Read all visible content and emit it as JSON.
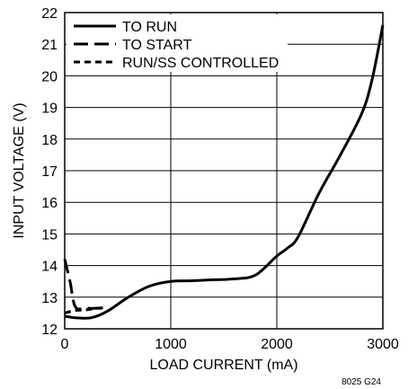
{
  "chart_data": {
    "type": "line",
    "xlabel": "LOAD CURRENT (mA)",
    "ylabel": "INPUT VOLTAGE (V)",
    "xlim": [
      0,
      3000
    ],
    "ylim": [
      12,
      22
    ],
    "x_ticks": [
      0,
      1000,
      2000,
      3000
    ],
    "y_ticks": [
      12,
      13,
      14,
      15,
      16,
      17,
      18,
      19,
      20,
      21,
      22
    ],
    "grid": true,
    "legend_position": "top-left",
    "note": "8025 G24",
    "series": [
      {
        "name": "TO RUN",
        "style": "solid",
        "points": [
          [
            0,
            12.4
          ],
          [
            100,
            12.35
          ],
          [
            250,
            12.35
          ],
          [
            400,
            12.55
          ],
          [
            600,
            13.0
          ],
          [
            800,
            13.35
          ],
          [
            1000,
            13.5
          ],
          [
            1200,
            13.52
          ],
          [
            1400,
            13.55
          ],
          [
            1600,
            13.58
          ],
          [
            1800,
            13.7
          ],
          [
            2000,
            14.3
          ],
          [
            2100,
            14.55
          ],
          [
            2200,
            14.9
          ],
          [
            2400,
            16.3
          ],
          [
            2600,
            17.5
          ],
          [
            2800,
            18.8
          ],
          [
            2900,
            19.9
          ],
          [
            3000,
            21.6
          ]
        ]
      },
      {
        "name": "TO START",
        "style": "long-dash",
        "points": [
          [
            0,
            14.2
          ],
          [
            50,
            13.5
          ],
          [
            100,
            12.7
          ],
          [
            200,
            12.65
          ],
          [
            350,
            12.65
          ]
        ]
      },
      {
        "name": "RUN/SS CONTROLLED",
        "style": "short-dash",
        "points": [
          [
            0,
            12.5
          ],
          [
            100,
            12.58
          ],
          [
            200,
            12.6
          ],
          [
            300,
            12.65
          ],
          [
            400,
            12.67
          ]
        ]
      }
    ]
  }
}
